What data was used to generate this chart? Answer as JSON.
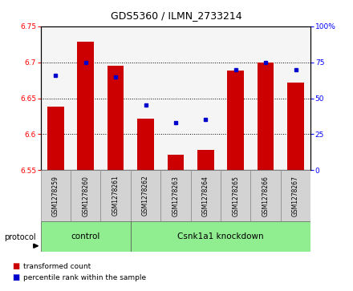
{
  "title": "GDS5360 / ILMN_2733214",
  "samples": [
    "GSM1278259",
    "GSM1278260",
    "GSM1278261",
    "GSM1278262",
    "GSM1278263",
    "GSM1278264",
    "GSM1278265",
    "GSM1278266",
    "GSM1278267"
  ],
  "red_values": [
    6.638,
    6.728,
    6.695,
    6.622,
    6.572,
    6.578,
    6.688,
    6.7,
    6.672
  ],
  "blue_values": [
    66,
    75,
    65,
    45,
    33,
    35,
    70,
    75,
    70
  ],
  "ylim_left": [
    6.55,
    6.75
  ],
  "ylim_right": [
    0,
    100
  ],
  "yticks_left": [
    6.55,
    6.6,
    6.65,
    6.7,
    6.75
  ],
  "yticks_right": [
    0,
    25,
    50,
    75,
    100
  ],
  "bar_color": "#cc0000",
  "dot_color": "#0000cc",
  "bar_bottom": 6.55,
  "bar_width": 0.55,
  "plot_bg": "#f5f5f5",
  "legend_red_label": "transformed count",
  "legend_blue_label": "percentile rank within the sample",
  "protocol_label": "protocol",
  "control_label": "control",
  "knockdown_label": "Csnk1a1 knockdown",
  "green_color": "#90ee90",
  "gray_color": "#d3d3d3",
  "title_fontsize": 9,
  "tick_fontsize": 6.5,
  "sample_fontsize": 5.5,
  "group_fontsize": 7.5,
  "legend_fontsize": 6.5,
  "protocol_fontsize": 7
}
